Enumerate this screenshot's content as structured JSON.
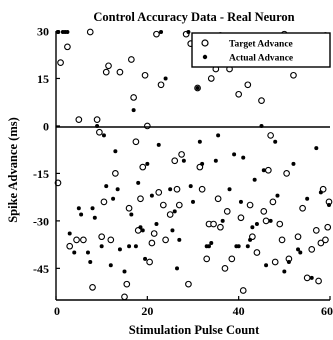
{
  "chart_data": {
    "type": "scatter",
    "title": "Control Accuracy Data - Real Neuron",
    "xlabel": "Stimulation Pulse Count",
    "ylabel": "Spike Advance (ms)",
    "xlim": [
      0,
      60
    ],
    "ylim": [
      -55,
      30
    ],
    "xticks": [
      "0",
      "20",
      "40",
      "60"
    ],
    "yticks": [
      "30",
      "15",
      "0",
      "-15",
      "-30",
      "-45"
    ],
    "zero_line": true,
    "grid": false,
    "legend_position": "top-right",
    "series": [
      {
        "name": "Target Advance",
        "marker": "open-circle",
        "points": [
          [
            0.3,
            -18
          ],
          [
            1,
            20
          ],
          [
            2.5,
            25
          ],
          [
            3,
            -38
          ],
          [
            4.5,
            -36
          ],
          [
            5,
            2
          ],
          [
            6,
            -36
          ],
          [
            7.5,
            30
          ],
          [
            8,
            -51
          ],
          [
            9,
            2
          ],
          [
            9.5,
            -2
          ],
          [
            10,
            -35
          ],
          [
            10.5,
            -24
          ],
          [
            11,
            17
          ],
          [
            11.5,
            19
          ],
          [
            12,
            -36
          ],
          [
            13,
            -15
          ],
          [
            14,
            17
          ],
          [
            15,
            -54
          ],
          [
            15.5,
            -50
          ],
          [
            16,
            -26
          ],
          [
            16.5,
            21
          ],
          [
            17,
            9
          ],
          [
            17.5,
            -5
          ],
          [
            18,
            -33
          ],
          [
            18.5,
            -23
          ],
          [
            19,
            -13
          ],
          [
            19.5,
            16
          ],
          [
            20,
            0
          ],
          [
            20.5,
            -43
          ],
          [
            21,
            -37
          ],
          [
            21.5,
            -34
          ],
          [
            22,
            29
          ],
          [
            22.5,
            -21
          ],
          [
            23,
            13
          ],
          [
            23.5,
            -25
          ],
          [
            24,
            -36
          ],
          [
            25,
            -28
          ],
          [
            26,
            -11
          ],
          [
            26.5,
            -20
          ],
          [
            27,
            -25
          ],
          [
            27.5,
            -9
          ],
          [
            28.5,
            29
          ],
          [
            29,
            -50
          ],
          [
            29.5,
            26
          ],
          [
            31,
            12
          ],
          [
            31.5,
            -13
          ],
          [
            32,
            -20
          ],
          [
            33,
            -42
          ],
          [
            33.5,
            -31
          ],
          [
            34,
            15
          ],
          [
            34.5,
            -31
          ],
          [
            35,
            18
          ],
          [
            35.5,
            -23
          ],
          [
            36,
            -32
          ],
          [
            37,
            -45
          ],
          [
            37.5,
            -27
          ],
          [
            38,
            18
          ],
          [
            38.5,
            -42
          ],
          [
            40,
            10
          ],
          [
            40.5,
            -29
          ],
          [
            41,
            -52
          ],
          [
            42,
            13
          ],
          [
            42.5,
            -25
          ],
          [
            43,
            -35
          ],
          [
            44,
            -40
          ],
          [
            45,
            8
          ],
          [
            45.5,
            -27
          ],
          [
            46,
            -30
          ],
          [
            46.5,
            -14
          ],
          [
            47,
            -3
          ],
          [
            47.5,
            -24
          ],
          [
            48,
            -43
          ],
          [
            49,
            -31
          ],
          [
            49.5,
            -36
          ],
          [
            50,
            29
          ],
          [
            50.5,
            -15
          ],
          [
            51,
            -42
          ],
          [
            52,
            16
          ],
          [
            53,
            -35
          ],
          [
            54,
            -26
          ],
          [
            55,
            -48
          ],
          [
            56,
            -39
          ],
          [
            57,
            -33
          ],
          [
            57.5,
            -49
          ],
          [
            58,
            -37
          ],
          [
            58.5,
            -20
          ],
          [
            59,
            -36
          ],
          [
            59.5,
            -32
          ],
          [
            60,
            -24
          ]
        ]
      },
      {
        "name": "Actual Advance",
        "marker": "filled-dot",
        "points": [
          [
            0,
            30
          ],
          [
            0.5,
            30
          ],
          [
            1.5,
            30
          ],
          [
            2,
            30
          ],
          [
            2.5,
            30
          ],
          [
            3,
            -34
          ],
          [
            4,
            -40
          ],
          [
            5,
            -26
          ],
          [
            5.5,
            -28
          ],
          [
            7,
            -40
          ],
          [
            7.5,
            -43
          ],
          [
            8,
            -26
          ],
          [
            8.5,
            -29
          ],
          [
            9,
            0
          ],
          [
            10,
            -38
          ],
          [
            10.5,
            -3
          ],
          [
            11,
            -19
          ],
          [
            12,
            -44
          ],
          [
            12.5,
            -23
          ],
          [
            13,
            -8
          ],
          [
            13.5,
            -20
          ],
          [
            14,
            -39
          ],
          [
            15,
            -46
          ],
          [
            16,
            -38
          ],
          [
            16.5,
            -28
          ],
          [
            17,
            5
          ],
          [
            17.5,
            -38
          ],
          [
            18,
            -18
          ],
          [
            18.5,
            -32
          ],
          [
            19,
            -33
          ],
          [
            19.5,
            -42
          ],
          [
            20,
            -12
          ],
          [
            21,
            -22
          ],
          [
            22,
            -31
          ],
          [
            22.5,
            -6
          ],
          [
            23,
            30
          ],
          [
            24,
            15
          ],
          [
            25,
            -20
          ],
          [
            25.5,
            -33
          ],
          [
            26,
            -27
          ],
          [
            26.5,
            -45
          ],
          [
            27,
            -36
          ],
          [
            28,
            -11
          ],
          [
            29,
            30
          ],
          [
            29.5,
            -19
          ],
          [
            30,
            -24
          ],
          [
            31,
            12
          ],
          [
            31.5,
            -5
          ],
          [
            32,
            -12
          ],
          [
            33,
            -38
          ],
          [
            33.5,
            -38
          ],
          [
            34,
            -37
          ],
          [
            35,
            -11
          ],
          [
            35.5,
            -3
          ],
          [
            36,
            29
          ],
          [
            36.5,
            -30
          ],
          [
            38,
            -20
          ],
          [
            39,
            -9
          ],
          [
            39.5,
            -38
          ],
          [
            40,
            -38
          ],
          [
            40.5,
            -24
          ],
          [
            41,
            -10
          ],
          [
            42,
            -38
          ],
          [
            42.5,
            -36
          ],
          [
            43,
            -32
          ],
          [
            43.5,
            -17
          ],
          [
            44,
            -31
          ],
          [
            45,
            0
          ],
          [
            45.5,
            -14
          ],
          [
            46,
            -44
          ],
          [
            47,
            -30
          ],
          [
            48,
            -5
          ],
          [
            48.5,
            -22
          ],
          [
            50,
            -46
          ],
          [
            51,
            -43
          ],
          [
            52,
            -12
          ],
          [
            53,
            -39
          ],
          [
            53.5,
            -40
          ],
          [
            55,
            -23
          ],
          [
            56,
            -48
          ],
          [
            57,
            -7
          ],
          [
            58,
            -21
          ],
          [
            59,
            29
          ],
          [
            60,
            -25
          ]
        ]
      }
    ]
  }
}
